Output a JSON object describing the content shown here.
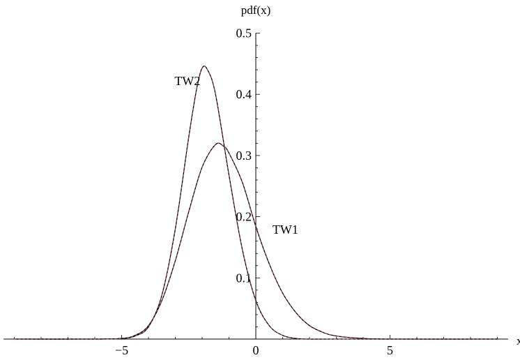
{
  "chart_data": {
    "type": "line",
    "title": "",
    "xlabel": "x",
    "ylabel": "pdf(x)",
    "xlim": [
      -9.4,
      9.4
    ],
    "ylim": [
      0,
      0.5
    ],
    "x_ticks": [
      -5,
      0,
      5
    ],
    "x_tick_labels": [
      "−5",
      "0",
      "5"
    ],
    "y_ticks": [
      0.1,
      0.2,
      0.3,
      0.4,
      0.5
    ],
    "y_tick_labels": [
      "0.1",
      "0.2",
      "0.3",
      "0.4",
      "0.5"
    ],
    "grid": false,
    "legend": "none",
    "series": [
      {
        "name": "TW1",
        "color": "#000000",
        "x": [
          -9,
          -6,
          -5,
          -4.5,
          -4,
          -3.5,
          -3,
          -2.5,
          -2,
          -1.5,
          -1.2,
          -1,
          -0.5,
          0,
          0.5,
          1,
          1.5,
          2,
          2.5,
          3,
          4,
          5,
          9
        ],
        "y": [
          0,
          0,
          0.001,
          0.006,
          0.022,
          0.063,
          0.128,
          0.208,
          0.281,
          0.318,
          0.315,
          0.304,
          0.256,
          0.184,
          0.123,
          0.075,
          0.043,
          0.022,
          0.011,
          0.005,
          0.001,
          0,
          0
        ]
      },
      {
        "name": "TW2",
        "color": "#000000",
        "x": [
          -9,
          -6,
          -5,
          -4.5,
          -4,
          -3.5,
          -3,
          -2.5,
          -2.2,
          -2,
          -1.8,
          -1.5,
          -1,
          -0.5,
          0,
          0.5,
          1,
          1.5,
          2,
          3,
          9
        ],
        "y": [
          0,
          0,
          0.001,
          0.005,
          0.02,
          0.072,
          0.18,
          0.33,
          0.41,
          0.443,
          0.44,
          0.4,
          0.268,
          0.146,
          0.063,
          0.022,
          0.006,
          0.001,
          0,
          0,
          0
        ]
      }
    ],
    "annotations": [
      {
        "text": "TW2",
        "x": -2.55,
        "y": 0.415
      },
      {
        "text": "TW1",
        "x": 1.1,
        "y": 0.172
      }
    ]
  }
}
